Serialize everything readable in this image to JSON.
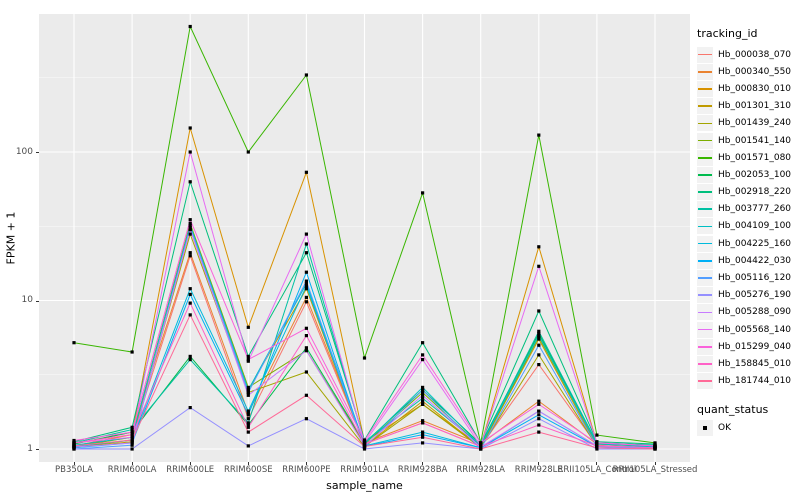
{
  "chart_data": {
    "type": "line",
    "title": "",
    "xlabel": "sample_name",
    "ylabel": "FPKM + 1",
    "y_scale": "log10",
    "ylim": [
      0.82,
      850
    ],
    "y_ticks": [
      1,
      10,
      100
    ],
    "y_tick_labels": [
      "1",
      "10",
      "100"
    ],
    "y_minor_ticks": [
      3.162,
      31.62,
      316.2
    ],
    "grid": "major-and-minor-white-on-gray",
    "panel_bg": "#EBEBEB",
    "grid_color": "#FFFFFF",
    "point_shape": "filled-square",
    "point_color": "#000000",
    "legend_position": "right",
    "categories": [
      "PB350LA",
      "RRIM600LA",
      "RRIM600LE",
      "RRIM600SE",
      "RRIM600PE",
      "RRIM901LA",
      "RRIM928BA",
      "RRIM928LA",
      "RRIM928LE",
      "RRII105LA_Control",
      "RRII105LA_Stressed"
    ],
    "series": [
      {
        "name": "Hb_000038_070",
        "color": "#F8766D",
        "values": [
          1.05,
          1.2,
          20,
          1.6,
          9.8,
          1.08,
          1.5,
          1.04,
          3.7,
          1.06,
          1.02
        ]
      },
      {
        "name": "Hb_000340_550",
        "color": "#EA8331",
        "values": [
          1.08,
          1.3,
          21,
          1.75,
          10.5,
          1.1,
          1.55,
          1.08,
          2.1,
          1.08,
          1.04
        ]
      },
      {
        "name": "Hb_000830_010",
        "color": "#D89200",
        "values": [
          1.05,
          1.25,
          145,
          6.6,
          73,
          1.12,
          2.0,
          1.05,
          23,
          1.1,
          1.03
        ]
      },
      {
        "name": "Hb_001301_310",
        "color": "#C09B00",
        "values": [
          1.02,
          1.12,
          30,
          2.5,
          12,
          1.05,
          2.1,
          1.02,
          5.5,
          1.05,
          1.01
        ]
      },
      {
        "name": "Hb_001439_240",
        "color": "#A3A500",
        "values": [
          1.02,
          1.15,
          28,
          2.4,
          3.3,
          1.04,
          2.0,
          1.02,
          4.3,
          1.04,
          1.02
        ]
      },
      {
        "name": "Hb_001541_140",
        "color": "#7CAE00",
        "values": [
          1.04,
          1.2,
          33,
          2.6,
          4.6,
          1.08,
          2.4,
          1.04,
          5.7,
          1.08,
          1.04
        ]
      },
      {
        "name": "Hb_001571_080",
        "color": "#39B600",
        "values": [
          5.2,
          4.5,
          700,
          100,
          330,
          4.1,
          53,
          1.1,
          130,
          1.24,
          1.1
        ]
      },
      {
        "name": "Hb_002053_100",
        "color": "#00BB4E",
        "values": [
          1.08,
          1.3,
          4.2,
          1.45,
          4.8,
          1.1,
          2.5,
          1.08,
          6.0,
          1.1,
          1.06
        ]
      },
      {
        "name": "Hb_002918_220",
        "color": "#00BF7D",
        "values": [
          1.12,
          1.4,
          63,
          4.2,
          21,
          1.15,
          5.2,
          1.1,
          8.5,
          1.12,
          1.08
        ]
      },
      {
        "name": "Hb_003777_260",
        "color": "#00C1A3",
        "values": [
          1.1,
          1.35,
          4.0,
          1.5,
          24,
          1.12,
          2.2,
          1.06,
          6.2,
          1.1,
          1.06
        ]
      },
      {
        "name": "Hb_004109_100",
        "color": "#00BFC4",
        "values": [
          1.06,
          1.2,
          32,
          2.5,
          13,
          1.08,
          2.6,
          1.05,
          5.8,
          1.08,
          1.04
        ]
      },
      {
        "name": "Hb_004225_160",
        "color": "#00BBDC",
        "values": [
          1.04,
          1.15,
          12,
          1.8,
          12.5,
          1.05,
          1.3,
          1.02,
          1.8,
          1.05,
          1.03
        ]
      },
      {
        "name": "Hb_004422_030",
        "color": "#00B0F6",
        "values": [
          1.02,
          1.1,
          11,
          1.7,
          15.5,
          1.04,
          1.25,
          1.02,
          1.7,
          1.04,
          1.02
        ]
      },
      {
        "name": "Hb_005116_120",
        "color": "#529EFF",
        "values": [
          1.0,
          1.06,
          31,
          2.4,
          13.5,
          1.03,
          2.5,
          1.0,
          5.0,
          1.04,
          1.0
        ]
      },
      {
        "name": "Hb_005276_190",
        "color": "#9590FF",
        "values": [
          1.0,
          1.0,
          1.9,
          1.05,
          1.6,
          1.0,
          1.1,
          1.0,
          1.6,
          1.0,
          1.0
        ]
      },
      {
        "name": "Hb_005288_090",
        "color": "#C77CFF",
        "values": [
          1.03,
          1.1,
          30,
          2.3,
          4.6,
          1.05,
          2.3,
          1.03,
          1.8,
          1.05,
          1.02
        ]
      },
      {
        "name": "Hb_005568_140",
        "color": "#E76BF3",
        "values": [
          1.1,
          1.2,
          100,
          3.9,
          28,
          1.1,
          4.0,
          1.05,
          17,
          1.1,
          1.05
        ]
      },
      {
        "name": "Hb_015299_040",
        "color": "#FA62DB",
        "values": [
          1.14,
          1.3,
          35,
          4.0,
          6.5,
          1.14,
          4.3,
          1.1,
          2.0,
          1.1,
          1.05
        ]
      },
      {
        "name": "Hb_158845_010",
        "color": "#FF61C7",
        "values": [
          1.1,
          1.25,
          9.6,
          1.4,
          5.8,
          1.08,
          1.5,
          1.04,
          1.45,
          1.05,
          1.02
        ]
      },
      {
        "name": "Hb_181744_010",
        "color": "#FF6A98",
        "values": [
          1.05,
          1.15,
          8,
          1.3,
          2.3,
          1.04,
          1.2,
          1.0,
          1.3,
          1.02,
          1.0
        ]
      }
    ]
  },
  "legend": {
    "tracking_title": "tracking_id",
    "quant_title": "quant_status",
    "quant_items": [
      {
        "label": "OK",
        "shape": "filled-square",
        "color": "#000000"
      }
    ]
  }
}
